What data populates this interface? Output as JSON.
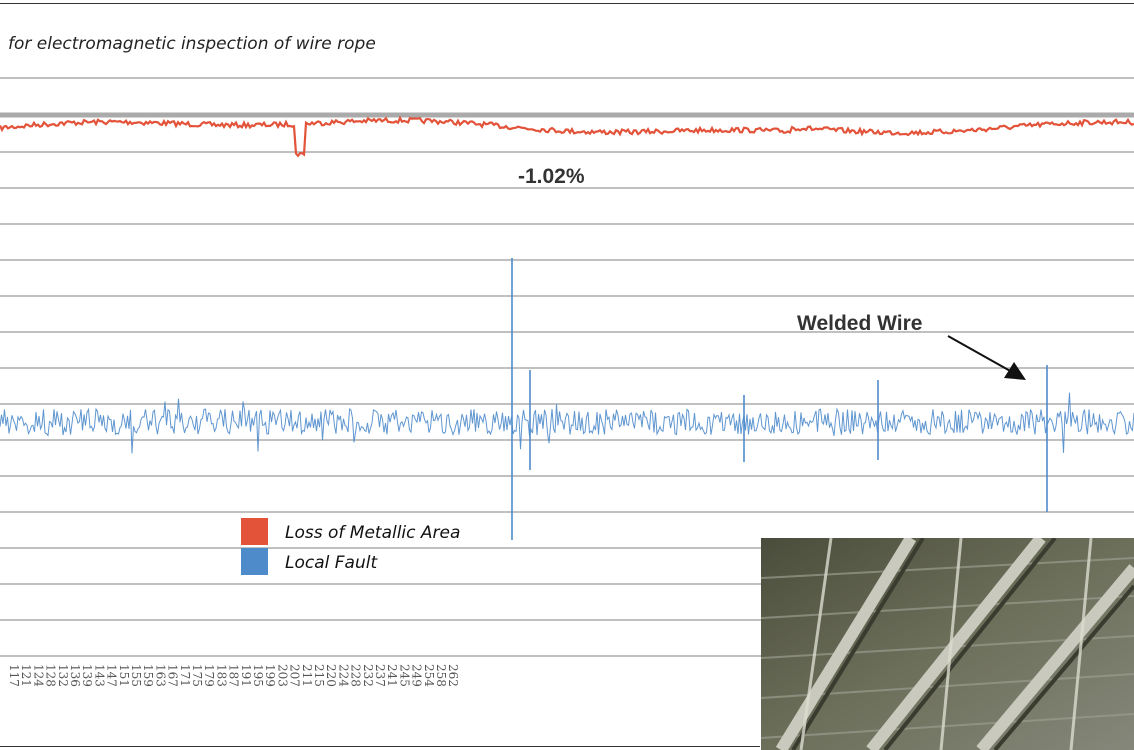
{
  "caption": "for electromagnetic inspection of wire rope",
  "chart_data": {
    "type": "line",
    "title": "",
    "series": [
      {
        "name": "Loss of Metallic Area",
        "color": "#e2533a",
        "notable_value": "-1.02%"
      },
      {
        "name": "Local Fault",
        "color": "#4e8bcb"
      }
    ],
    "x_ticks": [
      "117",
      "121",
      "124",
      "128",
      "132",
      "136",
      "139",
      "143",
      "147",
      "151",
      "155",
      "159",
      "163",
      "167",
      "171",
      "175",
      "179",
      "183",
      "187",
      "191",
      "195",
      "199",
      "203",
      "207",
      "211",
      "215",
      "220",
      "224",
      "228",
      "232",
      "237",
      "241",
      "245",
      "249",
      "254",
      "258",
      "262"
    ],
    "annotations": [
      {
        "text": "-1.02%",
        "series": "Loss of Metallic Area",
        "x": 211.5
      },
      {
        "text": "Welded Wire",
        "series": "Local Fault",
        "x": 255
      }
    ],
    "grid": true
  },
  "legend": {
    "items": [
      {
        "label": "Loss of Metallic Area",
        "color": "#e2533a"
      },
      {
        "label": "Local Fault",
        "color": "#4e8bcb"
      }
    ]
  },
  "photo": {
    "name": "steel-roof-truss-photo"
  }
}
